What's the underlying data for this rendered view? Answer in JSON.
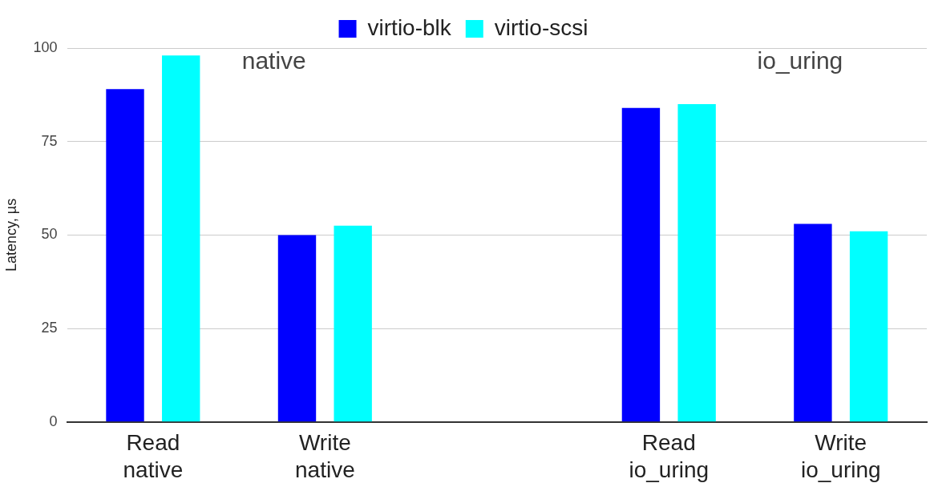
{
  "chart_data": {
    "type": "bar",
    "ylabel": "Latency, µs",
    "categories": [
      "Read\nnative",
      "Write\nnative",
      null,
      "Read\nio_uring",
      "Write\nio_uring"
    ],
    "series": [
      {
        "name": "virtio-blk",
        "color": "#0000ff",
        "values": [
          89,
          50,
          null,
          84,
          53
        ]
      },
      {
        "name": "virtio-scsi",
        "color": "#00ffff",
        "values": [
          98,
          52.5,
          null,
          85,
          51
        ]
      }
    ],
    "ylim": [
      0,
      100
    ],
    "yticks": [
      0,
      25,
      50,
      75,
      100
    ],
    "grid": "y",
    "legend": "top",
    "annotations": [
      "native",
      "io_uring"
    ]
  }
}
